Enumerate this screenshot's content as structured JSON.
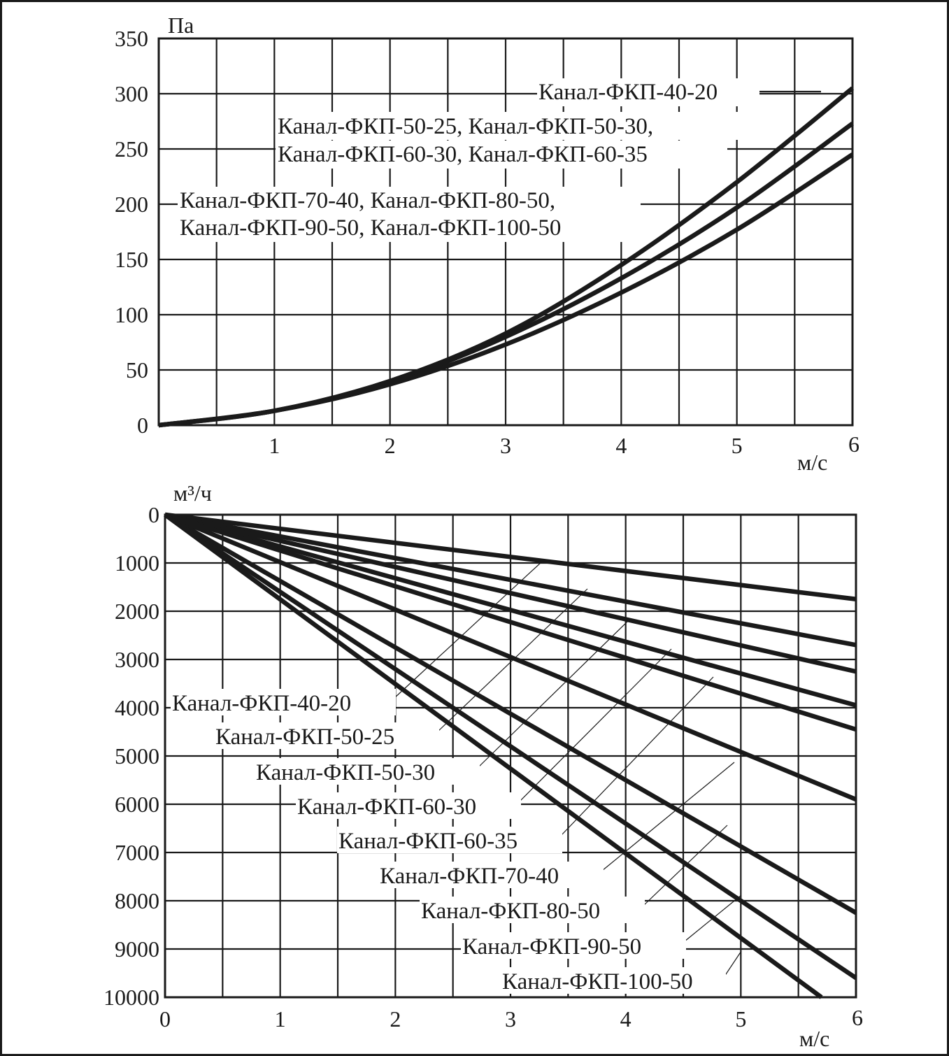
{
  "chart_data": [
    {
      "type": "line",
      "ylabel": "Па",
      "xlabel": "м/с",
      "xlim": [
        0,
        6
      ],
      "ylim": [
        0,
        350
      ],
      "x_ticks": [
        "1",
        "2",
        "3",
        "4",
        "5",
        "6"
      ],
      "y_ticks": [
        "0",
        "50",
        "100",
        "150",
        "200",
        "250",
        "300",
        "350"
      ],
      "grid": true,
      "series": [
        {
          "x": [
            0,
            1,
            2,
            3,
            4,
            5,
            6
          ],
          "y": [
            0,
            13,
            40,
            83,
            145,
            220,
            305
          ]
        },
        {
          "x": [
            0,
            1,
            2,
            3,
            4,
            5,
            6
          ],
          "y": [
            0,
            13,
            39,
            80,
            133,
            197,
            273
          ]
        },
        {
          "x": [
            0,
            1,
            2,
            3,
            4,
            5,
            6
          ],
          "y": [
            0,
            13,
            37,
            73,
            120,
            177,
            245
          ]
        }
      ],
      "annotations": [
        {
          "lines": [
            "Канал-ФКП-40-20"
          ],
          "points_to": "series 0"
        },
        {
          "lines": [
            "Канал-ФКП-50-25, Канал-ФКП-50-30,",
            "Канал-ФКП-60-30, Канал-ФКП-60-35"
          ],
          "points_to": "series 1"
        },
        {
          "lines": [
            "Канал-ФКП-70-40, Канал-ФКП-80-50,",
            "Канал-ФКП-90-50, Канал-ФКП-100-50"
          ],
          "points_to": "series 2"
        }
      ]
    },
    {
      "type": "line",
      "ylabel": "м³/ч",
      "xlabel": "м/с",
      "xlim": [
        0,
        6
      ],
      "ylim": [
        0,
        10000
      ],
      "y_inverted": true,
      "x_ticks": [
        "0",
        "1",
        "2",
        "3",
        "4",
        "5",
        "6"
      ],
      "y_ticks": [
        "0",
        "1000",
        "2000",
        "3000",
        "4000",
        "5000",
        "6000",
        "7000",
        "8000",
        "9000",
        "10000"
      ],
      "grid": true,
      "series": [
        {
          "name": "Канал-ФКП-40-20",
          "x": [
            0,
            6
          ],
          "y": [
            0,
            1750
          ]
        },
        {
          "name": "Канал-ФКП-50-25",
          "x": [
            0,
            6
          ],
          "y": [
            0,
            2700
          ]
        },
        {
          "name": "Канал-ФКП-50-30",
          "x": [
            0,
            6
          ],
          "y": [
            0,
            3250
          ]
        },
        {
          "name": "Канал-ФКП-60-30",
          "x": [
            0,
            6
          ],
          "y": [
            0,
            3950
          ]
        },
        {
          "name": "Канал-ФКП-60-35",
          "x": [
            0,
            6
          ],
          "y": [
            0,
            4450
          ]
        },
        {
          "name": "Канал-ФКП-70-40",
          "x": [
            0,
            6
          ],
          "y": [
            0,
            5900
          ]
        },
        {
          "name": "Канал-ФКП-80-50",
          "x": [
            0,
            6
          ],
          "y": [
            0,
            8250
          ]
        },
        {
          "name": "Канал-ФКП-90-50",
          "x": [
            0,
            6
          ],
          "y": [
            0,
            9600
          ]
        },
        {
          "name": "Канал-ФКП-100-50",
          "x": [
            0,
            5.7
          ],
          "y": [
            0,
            10000
          ]
        }
      ]
    }
  ]
}
